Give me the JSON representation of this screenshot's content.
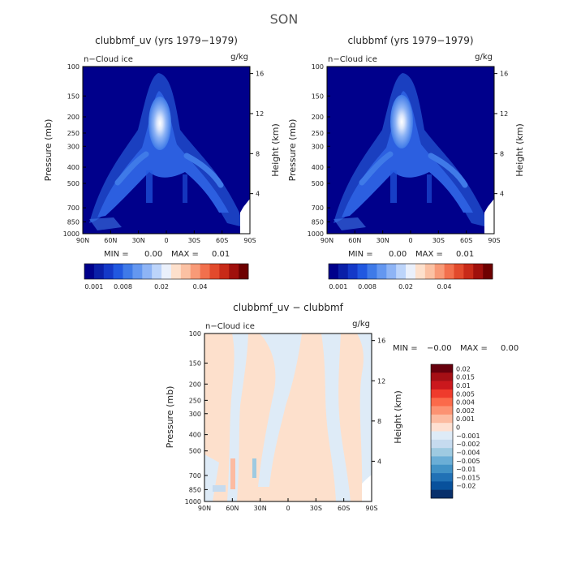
{
  "figure_title": "SON",
  "panel_header": {
    "left": "n−Cloud ice",
    "right": "g/kg"
  },
  "chart_data": [
    {
      "type": "heatmap",
      "title": "clubbmf_uv (yrs 1979−1979)",
      "ylabel": "Pressure (mb)",
      "y2label": "Height (km)",
      "x_tick_labels": [
        "90N",
        "60N",
        "30N",
        "0",
        "30S",
        "60S",
        "90S"
      ],
      "x_tick_values": [
        90,
        60,
        30,
        0,
        -30,
        -60,
        -90
      ],
      "y_tick_labels": [
        "100",
        "150",
        "200",
        "250",
        "300",
        "400",
        "500",
        "700",
        "850",
        "1000"
      ],
      "y_tick_values": [
        100,
        150,
        200,
        250,
        300,
        400,
        500,
        700,
        850,
        1000
      ],
      "y2_tick_labels": [
        "16",
        "12",
        "8",
        "4"
      ],
      "y2_tick_values": [
        16,
        12,
        8,
        4
      ],
      "stats": {
        "min_label": "MIN =",
        "min": "0.00",
        "max_label": "MAX =",
        "max": "0.01"
      },
      "colorbar": {
        "orientation": "horizontal",
        "colors": [
          "#00008b",
          "#0a1fa8",
          "#1439c8",
          "#2158e0",
          "#3f7ae8",
          "#6497f0",
          "#8eb4f5",
          "#bcd4fa",
          "#eaf0fb",
          "#fde0cc",
          "#fbc1a3",
          "#f89a77",
          "#f2704d",
          "#e24a2c",
          "#c82a18",
          "#a0100c",
          "#6e0000"
        ],
        "labels": [
          "0.001",
          "0.008",
          "0.02",
          "0.04"
        ]
      }
    },
    {
      "type": "heatmap",
      "title": "clubbmf (yrs 1979−1979)",
      "ylabel": "Pressure (mb)",
      "y2label": "Height (km)",
      "x_tick_labels": [
        "90N",
        "60N",
        "30N",
        "0",
        "30S",
        "60S",
        "90S"
      ],
      "x_tick_values": [
        90,
        60,
        30,
        0,
        -30,
        -60,
        -90
      ],
      "y_tick_labels": [
        "100",
        "150",
        "200",
        "250",
        "300",
        "400",
        "500",
        "700",
        "850",
        "1000"
      ],
      "y_tick_values": [
        100,
        150,
        200,
        250,
        300,
        400,
        500,
        700,
        850,
        1000
      ],
      "y2_tick_labels": [
        "16",
        "12",
        "8",
        "4"
      ],
      "y2_tick_values": [
        16,
        12,
        8,
        4
      ],
      "stats": {
        "min_label": "MIN =",
        "min": "0.00",
        "max_label": "MAX =",
        "max": "0.01"
      },
      "colorbar": {
        "orientation": "horizontal",
        "colors": [
          "#00008b",
          "#0a1fa8",
          "#1439c8",
          "#2158e0",
          "#3f7ae8",
          "#6497f0",
          "#8eb4f5",
          "#bcd4fa",
          "#eaf0fb",
          "#fde0cc",
          "#fbc1a3",
          "#f89a77",
          "#f2704d",
          "#e24a2c",
          "#c82a18",
          "#a0100c",
          "#6e0000"
        ],
        "labels": [
          "0.001",
          "0.008",
          "0.02",
          "0.04"
        ]
      }
    },
    {
      "type": "heatmap",
      "title": "clubbmf_uv − clubbmf",
      "ylabel": "Pressure (mb)",
      "y2label": "Height (km)",
      "x_tick_labels": [
        "90N",
        "60N",
        "30N",
        "0",
        "30S",
        "60S",
        "90S"
      ],
      "x_tick_values": [
        90,
        60,
        30,
        0,
        -30,
        -60,
        -90
      ],
      "y_tick_labels": [
        "100",
        "150",
        "200",
        "250",
        "300",
        "400",
        "500",
        "700",
        "850",
        "1000"
      ],
      "y_tick_values": [
        100,
        150,
        200,
        250,
        300,
        400,
        500,
        700,
        850,
        1000
      ],
      "y2_tick_labels": [
        "16",
        "12",
        "8",
        "4"
      ],
      "y2_tick_values": [
        16,
        12,
        8,
        4
      ],
      "stats": {
        "min_label": "MIN =",
        "min": "−0.00",
        "max_label": "MAX =",
        "max": "0.00"
      },
      "colorbar": {
        "orientation": "vertical",
        "colors": [
          "#67000d",
          "#a50f15",
          "#cb181d",
          "#ef3b2c",
          "#fb6a4a",
          "#fc9272",
          "#fcbba1",
          "#fee0d2",
          "#deebf7",
          "#c6dbef",
          "#9ecae1",
          "#6baed6",
          "#4292c6",
          "#2171b5",
          "#08519c",
          "#08306b"
        ],
        "labels": [
          "0.02",
          "0.015",
          "0.01",
          "0.005",
          "0.004",
          "0.002",
          "0.001",
          "0",
          "−0.001",
          "−0.002",
          "−0.004",
          "−0.005",
          "−0.01",
          "−0.015",
          "−0.02"
        ]
      }
    }
  ]
}
